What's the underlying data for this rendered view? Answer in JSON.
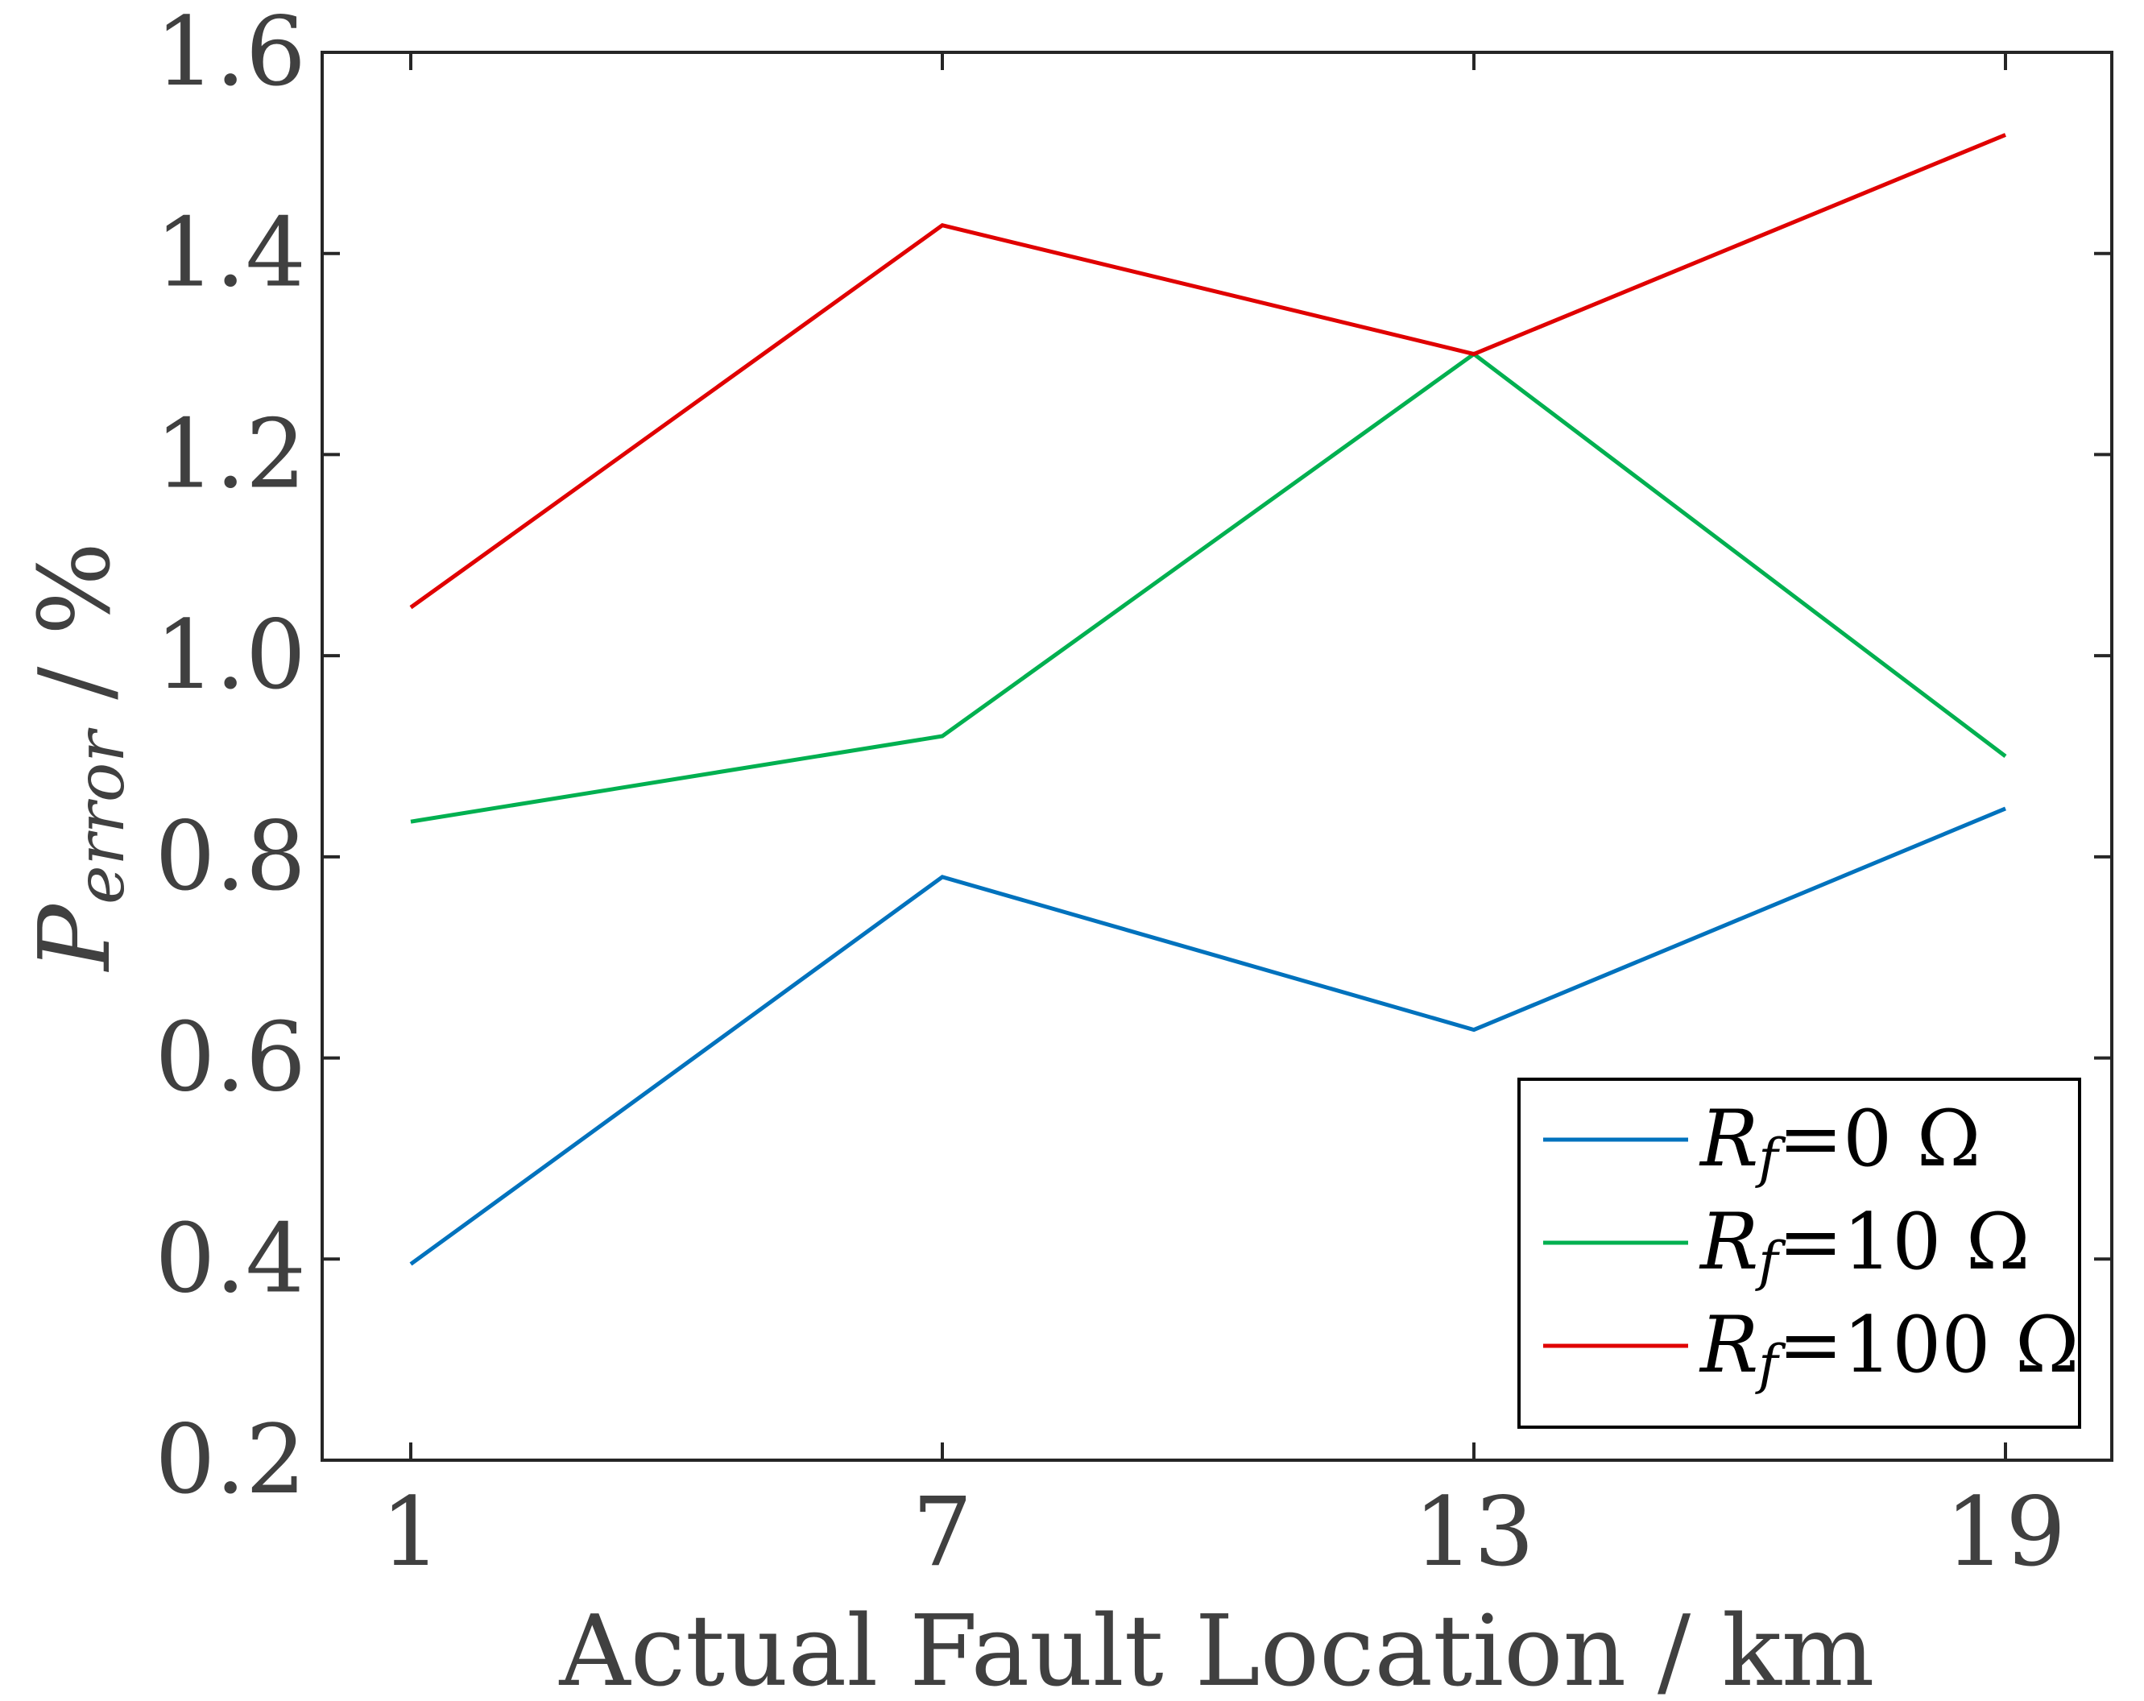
{
  "chart_data": {
    "type": "line",
    "x": [
      1,
      7,
      13,
      19
    ],
    "xticks": [
      "1",
      "7",
      "13",
      "19"
    ],
    "xlim": [
      0,
      20.2
    ],
    "yticks": [
      "0.2",
      "0.4",
      "0.6",
      "0.8",
      "1.0",
      "1.2",
      "1.4",
      "1.6"
    ],
    "ylim": [
      0.2,
      1.6
    ],
    "xlabel": "Actual Fault Location / km",
    "ylabel": {
      "symbol": "P",
      "subscript": "error",
      "rest": " / %"
    },
    "grid": false,
    "legend_position": "bottom-right",
    "series": [
      {
        "name": {
          "symbol": "R",
          "subscript": "f",
          "rest": "=0 Ω"
        },
        "color": "#0072bd",
        "values": [
          0.395,
          0.78,
          0.628,
          0.848
        ]
      },
      {
        "name": {
          "symbol": "R",
          "subscript": "f",
          "rest": "=10 Ω"
        },
        "color": "#00b050",
        "values": [
          0.835,
          0.92,
          1.3,
          0.9
        ]
      },
      {
        "name": {
          "symbol": "R",
          "subscript": "f",
          "rest": "=100 Ω"
        },
        "color": "#e00000",
        "values": [
          1.048,
          1.428,
          1.3,
          1.518
        ]
      }
    ]
  }
}
